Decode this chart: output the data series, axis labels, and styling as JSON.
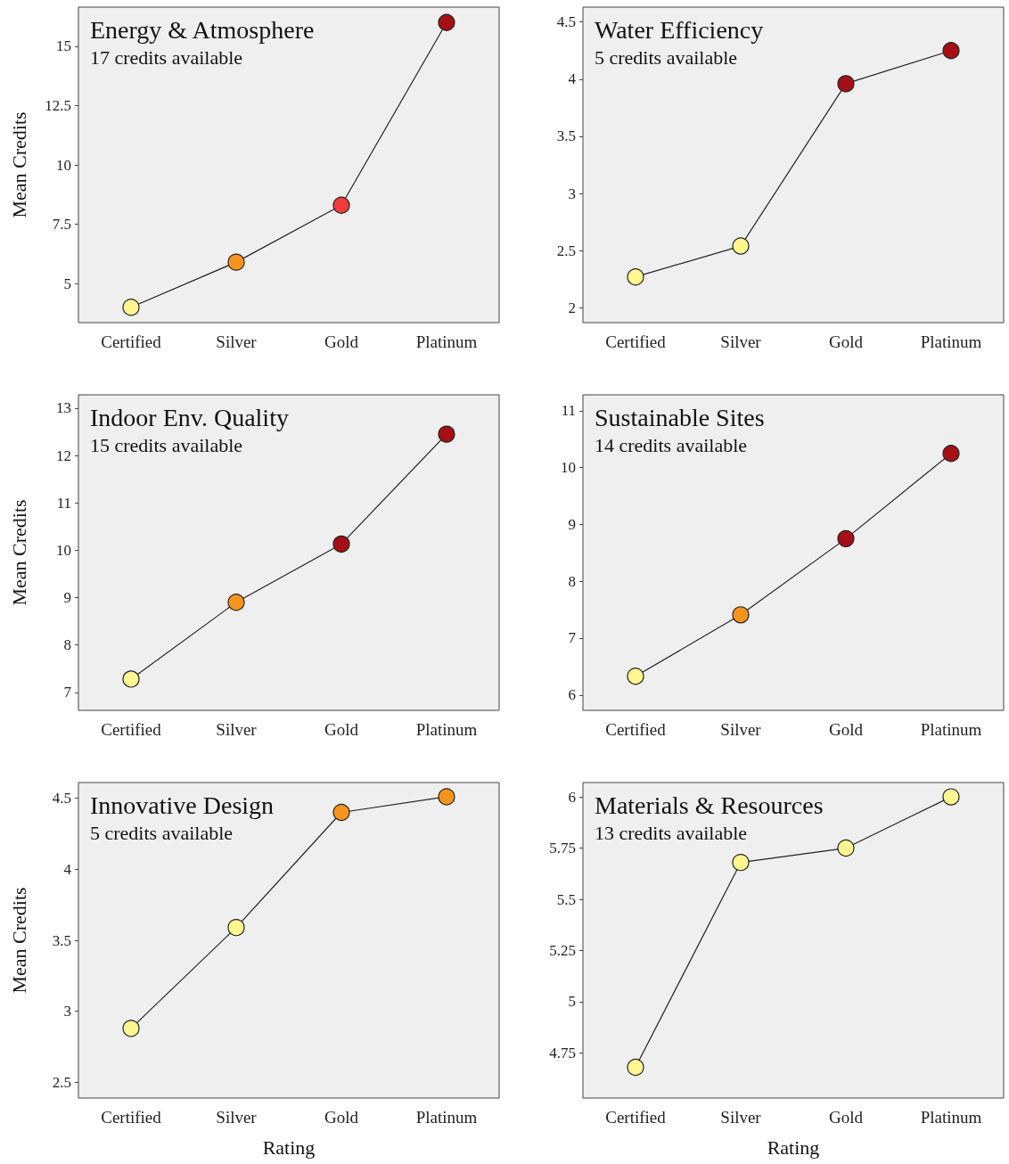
{
  "chart_data": [
    {
      "type": "line",
      "title": "Energy & Atmosphere",
      "subtitle": "17 credits available",
      "ylabel": "Mean Credits",
      "categories": [
        "Certified",
        "Silver",
        "Gold",
        "Platinum"
      ],
      "series": [
        {
          "color": "#222222",
          "colors": [
            "#fff68f",
            "#f7941d",
            "#f03c3c",
            "#a50f15"
          ],
          "values": [
            4.0,
            5.9,
            8.3,
            16.0
          ]
        }
      ],
      "ylim": [
        3.35,
        16.65
      ],
      "yticks": [
        5,
        7.5,
        10,
        12.5,
        15
      ],
      "marker": "circle",
      "line_style": "solid",
      "grid": false
    },
    {
      "type": "line",
      "title": "Water Efficiency",
      "subtitle": "5 credits available",
      "categories": [
        "Certified",
        "Silver",
        "Gold",
        "Platinum"
      ],
      "series": [
        {
          "color": "#222222",
          "colors": [
            "#fff68f",
            "#fff68f",
            "#a50f15",
            "#a50f15"
          ],
          "values": [
            2.27,
            2.54,
            3.96,
            4.25
          ]
        }
      ],
      "ylim": [
        1.87,
        4.63
      ],
      "yticks": [
        2,
        2.5,
        3,
        3.5,
        4,
        4.5
      ],
      "marker": "circle",
      "line_style": "solid",
      "grid": false
    },
    {
      "type": "line",
      "title": "Indoor Env. Quality",
      "subtitle": "15 credits available",
      "ylabel": "Mean Credits",
      "categories": [
        "Certified",
        "Silver",
        "Gold",
        "Platinum"
      ],
      "series": [
        {
          "color": "#222222",
          "colors": [
            "#fff68f",
            "#f7941d",
            "#a50f15",
            "#a50f15"
          ],
          "values": [
            7.28,
            8.9,
            10.13,
            12.45
          ]
        }
      ],
      "ylim": [
        6.62,
        13.28
      ],
      "yticks": [
        7,
        8,
        9,
        10,
        11,
        12,
        13
      ],
      "marker": "circle",
      "line_style": "solid",
      "grid": false
    },
    {
      "type": "line",
      "title": "Sustainable Sites",
      "subtitle": "14 credits available",
      "categories": [
        "Certified",
        "Silver",
        "Gold",
        "Platinum"
      ],
      "series": [
        {
          "color": "#222222",
          "colors": [
            "#fff68f",
            "#f7941d",
            "#a50f15",
            "#a50f15"
          ],
          "values": [
            6.33,
            7.41,
            8.75,
            10.25
          ]
        }
      ],
      "ylim": [
        5.73,
        11.28
      ],
      "yticks": [
        6,
        7,
        8,
        9,
        10,
        11
      ],
      "marker": "circle",
      "line_style": "solid",
      "grid": false
    },
    {
      "type": "line",
      "title": "Innovative Design",
      "subtitle": "5 credits available",
      "ylabel": "Mean Credits",
      "xlabel": "Rating",
      "categories": [
        "Certified",
        "Silver",
        "Gold",
        "Platinum"
      ],
      "series": [
        {
          "color": "#222222",
          "colors": [
            "#fff68f",
            "#fff68f",
            "#f7941d",
            "#f7941d"
          ],
          "values": [
            2.88,
            3.59,
            4.4,
            4.51
          ]
        }
      ],
      "ylim": [
        2.39,
        4.61
      ],
      "yticks": [
        2.5,
        3,
        3.5,
        4,
        4.5
      ],
      "marker": "circle",
      "line_style": "solid",
      "grid": false
    },
    {
      "type": "line",
      "title": "Materials & Resources",
      "subtitle": "13 credits available",
      "xlabel": "Rating",
      "categories": [
        "Certified",
        "Silver",
        "Gold",
        "Platinum"
      ],
      "series": [
        {
          "color": "#222222",
          "colors": [
            "#fff68f",
            "#fff68f",
            "#fff68f",
            "#fff68f"
          ],
          "values": [
            4.68,
            5.68,
            5.75,
            6.0
          ]
        }
      ],
      "ylim": [
        4.53,
        6.07
      ],
      "yticks": [
        4.75,
        5,
        5.25,
        5.5,
        5.75,
        6
      ],
      "marker": "circle",
      "line_style": "solid",
      "grid": false
    }
  ]
}
